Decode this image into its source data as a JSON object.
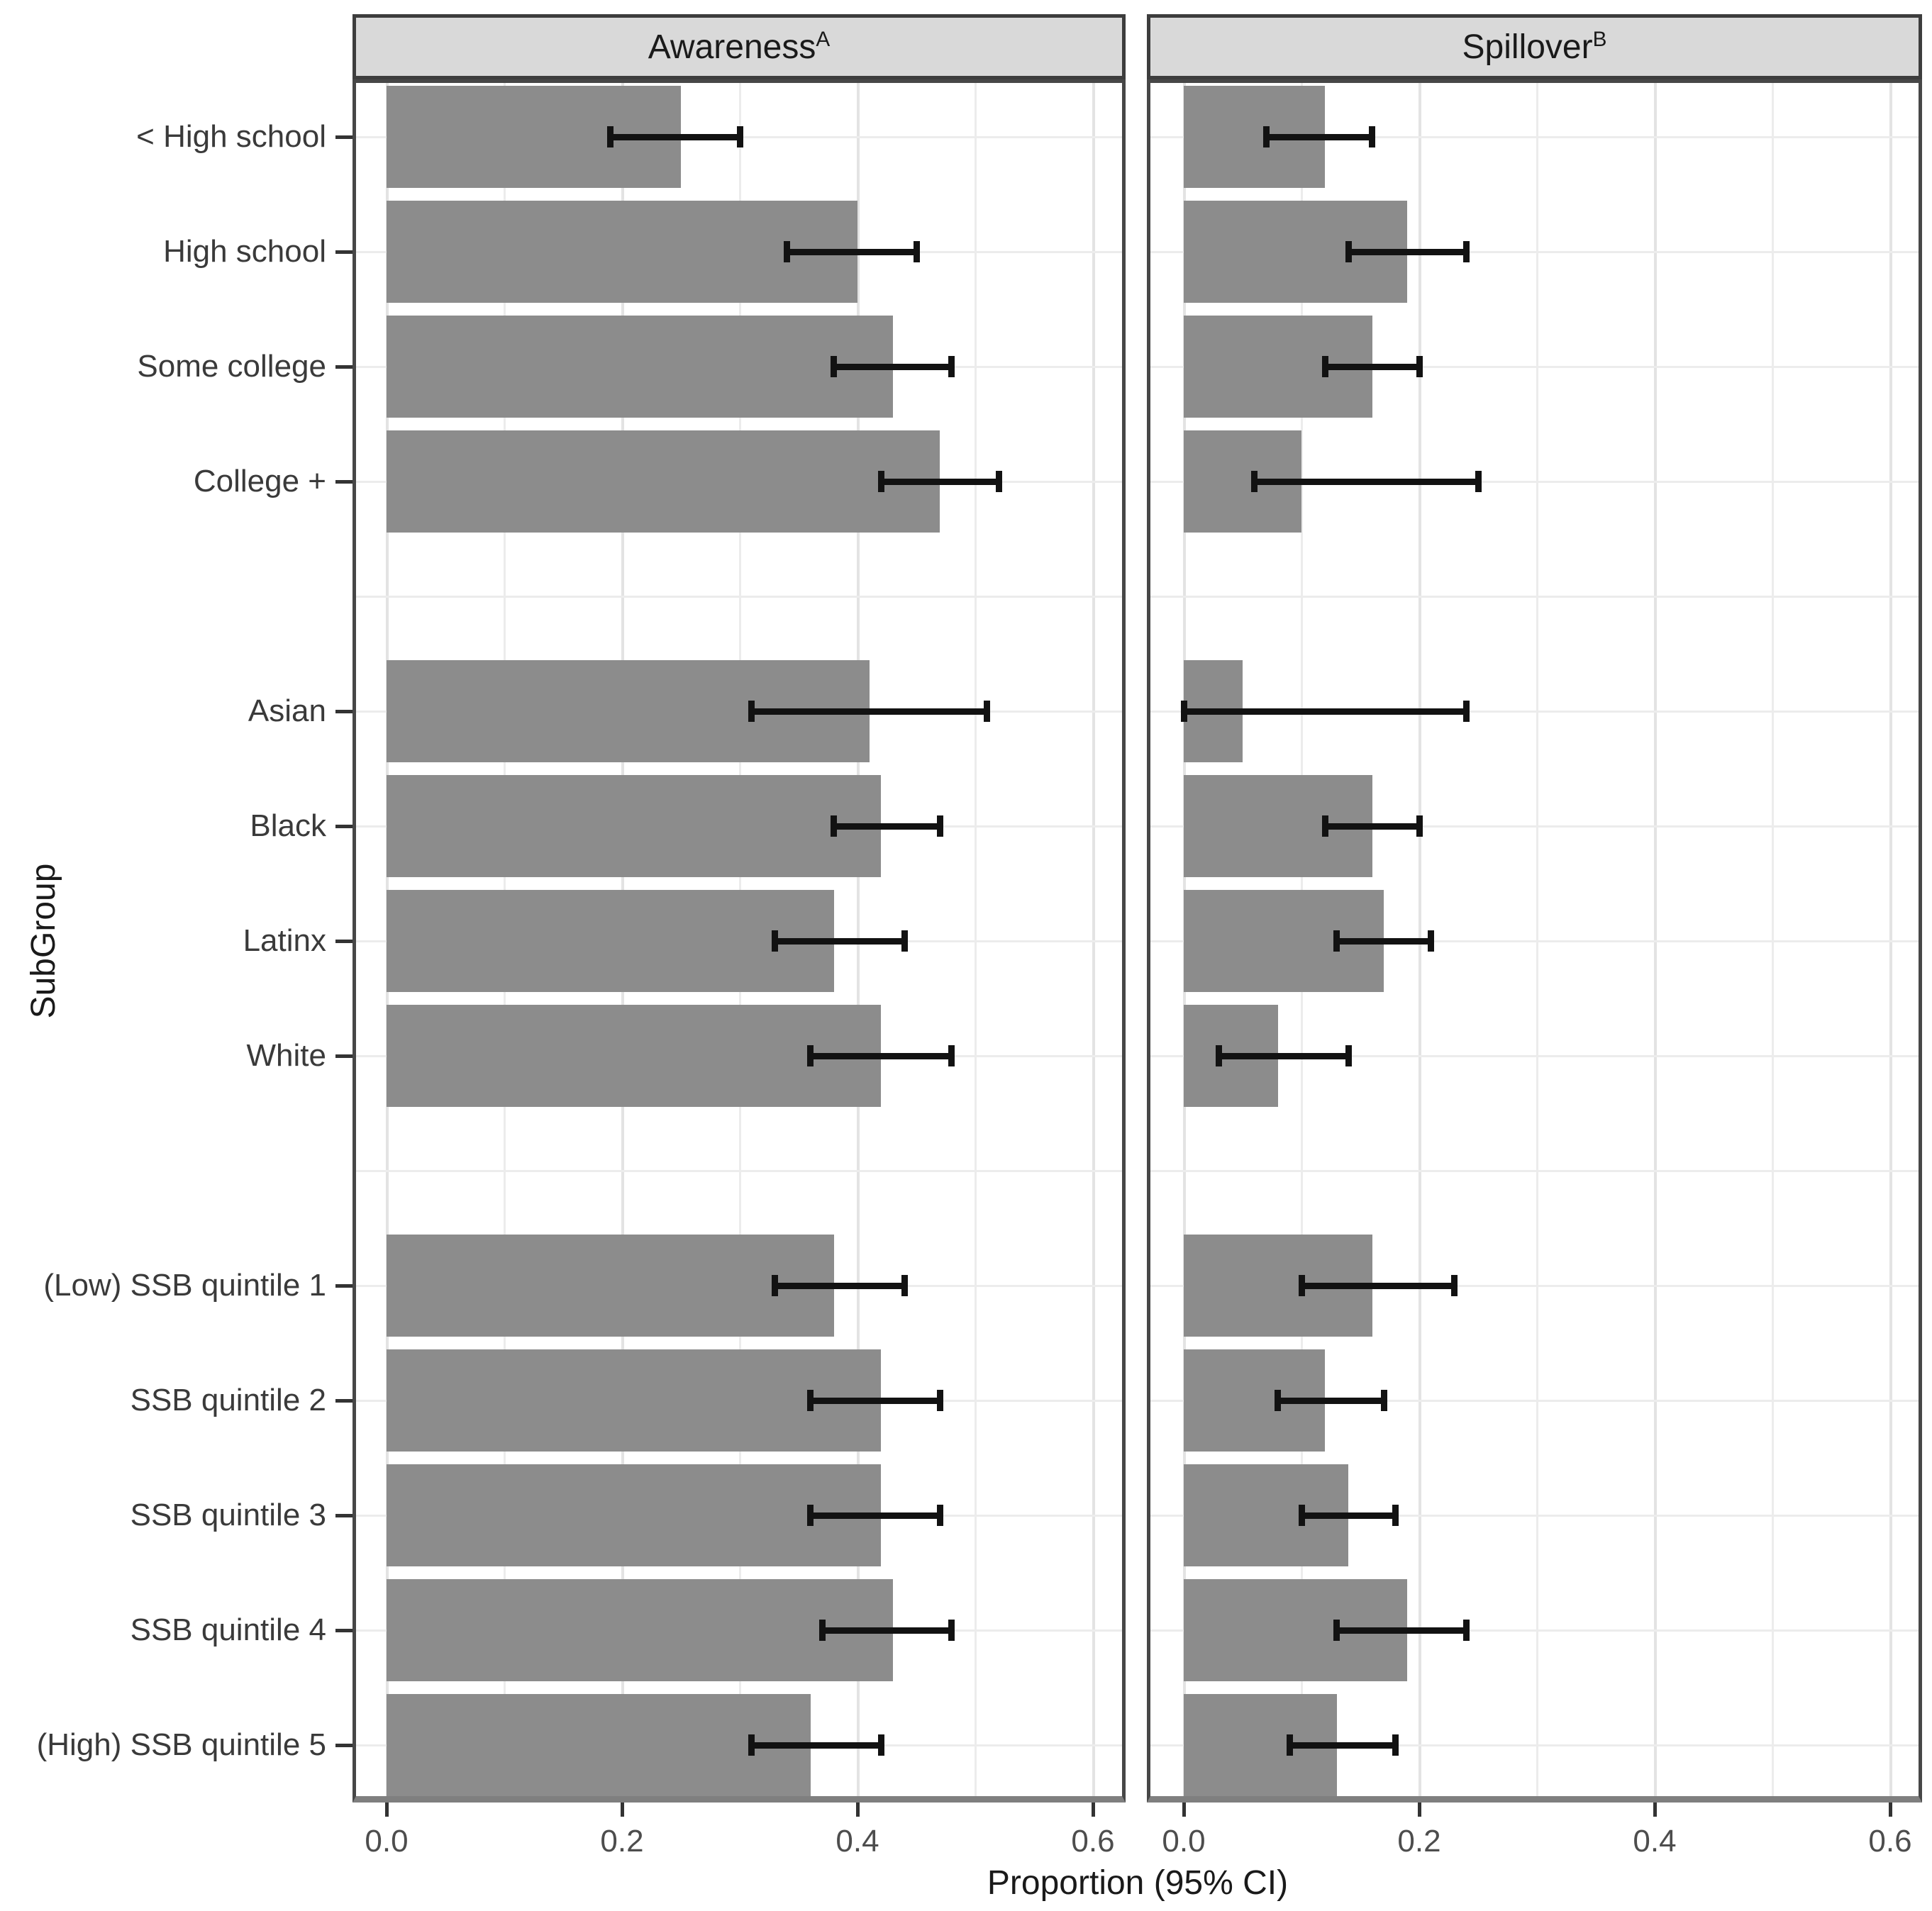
{
  "figure": {
    "x_axis": {
      "label": "Proportion (95% CI)",
      "tick_labels": [
        "0.0",
        "0.2",
        "0.4",
        "0.6"
      ]
    },
    "y_axis": {
      "label": "SubGroup"
    }
  },
  "chart_data": {
    "type": "bar",
    "orientation": "horizontal",
    "title": "",
    "xlabel": "Proportion (95% CI)",
    "ylabel": "SubGroup",
    "xlim": [
      0,
      0.63
    ],
    "x_gridlines_every": 0.1,
    "grid": "on",
    "legend": "none",
    "facets": [
      {
        "label": "Awareness",
        "superscript": "A"
      },
      {
        "label": "Spillover",
        "superscript": "B"
      }
    ],
    "category_groups": [
      [
        "< High school",
        "High school",
        "Some college",
        "College +"
      ],
      [
        "Asian",
        "Black",
        "Latinx",
        "White"
      ],
      [
        "(Low) SSB quintile 1",
        "SSB quintile 2",
        "SSB quintile 3",
        "SSB quintile 4",
        "(High) SSB quintile 5"
      ]
    ],
    "x_ticks": [
      {
        "value": 0.0,
        "label": "0.0"
      },
      {
        "value": 0.2,
        "label": "0.2"
      },
      {
        "value": 0.4,
        "label": "0.4"
      },
      {
        "value": 0.6,
        "label": "0.6"
      }
    ],
    "series": [
      {
        "facet": "Awareness",
        "values": [
          0.25,
          0.4,
          0.43,
          0.47,
          0.41,
          0.42,
          0.38,
          0.42,
          0.38,
          0.42,
          0.42,
          0.43,
          0.36
        ],
        "ci_low": [
          0.19,
          0.34,
          0.38,
          0.42,
          0.31,
          0.38,
          0.33,
          0.36,
          0.33,
          0.36,
          0.36,
          0.37,
          0.31
        ],
        "ci_high": [
          0.3,
          0.45,
          0.48,
          0.52,
          0.51,
          0.47,
          0.44,
          0.48,
          0.44,
          0.47,
          0.47,
          0.48,
          0.42
        ]
      },
      {
        "facet": "Spillover",
        "values": [
          0.12,
          0.19,
          0.16,
          0.1,
          0.05,
          0.16,
          0.17,
          0.08,
          0.16,
          0.12,
          0.14,
          0.19,
          0.13
        ],
        "ci_low": [
          0.07,
          0.14,
          0.12,
          0.06,
          0.0,
          0.12,
          0.13,
          0.03,
          0.1,
          0.08,
          0.1,
          0.13,
          0.09
        ],
        "ci_high": [
          0.16,
          0.24,
          0.2,
          0.25,
          0.24,
          0.2,
          0.21,
          0.14,
          0.23,
          0.17,
          0.18,
          0.24,
          0.18
        ]
      }
    ]
  },
  "style": {
    "background": "#ffffff",
    "bar_fill": "#8c8c8c",
    "error_bar_color": "#121212",
    "strip_background": "#d9d9d9",
    "strip_border": "#3d3d3d",
    "panel_border": "#474747",
    "axis_line": "#7f7f7f",
    "gridline": "#ececec",
    "gridline_major": "#e3e3e3",
    "tick_mark": "#333333",
    "tick_label": "#4d4d4d",
    "text": "#1a1a1a"
  }
}
